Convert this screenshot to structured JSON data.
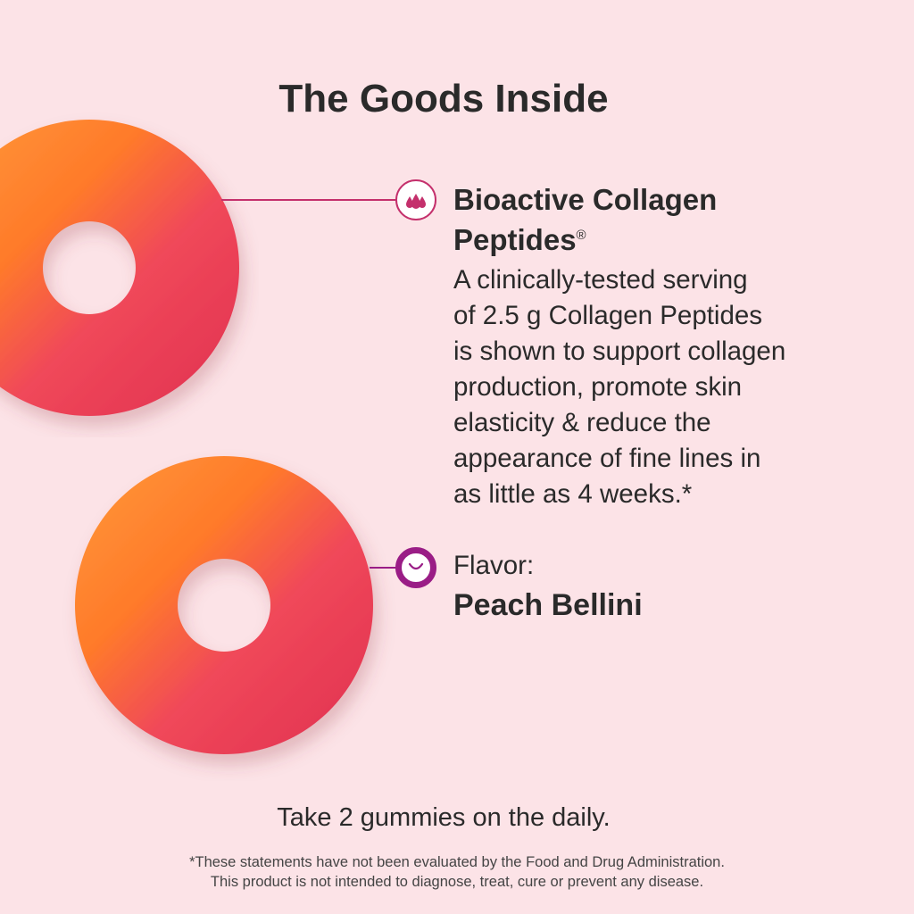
{
  "title": "The Goods Inside",
  "features": [
    {
      "icon": "droplets-icon",
      "heading": "Bioactive Collagen Peptides",
      "heading_line1": "Bioactive Collagen",
      "heading_line2": "Peptides",
      "trademark": "®",
      "description_lines": [
        "A clinically-tested serving",
        "of 2.5 g Collagen Peptides",
        "is shown to support collagen",
        "production, promote skin",
        "elasticity & reduce the",
        "appearance of fine lines in",
        "as little as 4 weeks.*"
      ]
    },
    {
      "icon": "smile-icon",
      "label": "Flavor:",
      "value": "Peach Bellini"
    }
  ],
  "directions": "Take 2 gummies on the daily.",
  "disclaimer_line1": "*These statements have not been evaluated by the Food and Drug Administration.",
  "disclaimer_line2": "This product is not intended to diagnose, treat, cure or prevent any disease.",
  "colors": {
    "background": "#fce3e7",
    "accent_pink": "#c4306c",
    "accent_purple": "#9a1d86"
  }
}
